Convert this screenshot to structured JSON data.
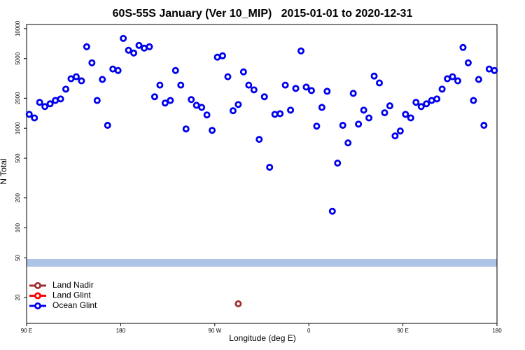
{
  "chart_data": {
    "type": "scatter",
    "title": "60S-55S January (Ver 10_MIP)   2015-01-01 to 2020-12-31",
    "x_label": "Longitude (deg E)",
    "y_label": "N Total",
    "log_y": true,
    "xlim": [
      90,
      540
    ],
    "ylim": [
      11,
      11000
    ],
    "xticks": [
      {
        "value": 90,
        "label": "90 E"
      },
      180,
      {
        "value": 270,
        "label": "90 W"
      },
      {
        "value": 360,
        "label": "0"
      },
      {
        "value": 450,
        "label": "90 E"
      },
      {
        "value": 540,
        "label": "180"
      }
    ],
    "yticks": [
      20,
      50,
      100,
      200,
      500,
      1000,
      2000,
      5000,
      10000
    ],
    "legend": "bottom-left",
    "series": [
      {
        "name": "Land Nadir",
        "color": "#a03030",
        "x": [
          292.5
        ],
        "values": [
          17.3
        ]
      },
      {
        "name": "Land Glint",
        "color": "#ff0000",
        "x": [],
        "values": []
      },
      {
        "name": "Ocean Glint",
        "color": "#0000ee",
        "x": [
          92.5,
          97.5,
          102.5,
          107.5,
          112.5,
          117.5,
          122.5,
          127.5,
          132.5,
          137.5,
          142.5,
          147.5,
          152.5,
          157.5,
          162.5,
          167.5,
          172.5,
          177.5,
          182.5,
          187.5,
          192.5,
          197.5,
          202.5,
          207.5,
          212.5,
          217.5,
          222.5,
          227.5,
          232.5,
          237.5,
          242.5,
          247.5,
          252.5,
          257.5,
          262.5,
          267.5,
          272.5,
          277.5,
          282.5,
          287.5,
          292.5,
          297.5,
          302.5,
          307.5,
          312.5,
          317.5,
          322.5,
          327.5,
          332.5,
          337.5,
          342.5,
          347.5,
          352.5,
          357.5,
          362.5,
          367.5,
          372.5,
          377.5,
          382.5,
          387.5,
          392.5,
          397.5,
          402.5,
          407.5,
          412.5,
          417.5,
          422.5,
          427.5,
          432.5,
          437.5,
          442.5,
          447.5,
          452.5,
          457.5,
          462.5,
          467.5,
          472.5,
          477.5,
          482.5,
          487.5,
          492.5,
          497.5,
          502.5,
          507.5,
          512.5,
          517.5,
          522.5,
          527.5,
          532.5,
          537.5
        ],
        "values": [
          1380,
          1270,
          1820,
          1650,
          1760,
          1900,
          1970,
          2470,
          3140,
          3290,
          2990,
          6580,
          4540,
          1900,
          3090,
          1070,
          3930,
          3800,
          7980,
          6070,
          5690,
          6790,
          6370,
          6580,
          2070,
          2710,
          1790,
          1900,
          3800,
          2710,
          984,
          1940,
          1700,
          1620,
          1360,
          953,
          5170,
          5340,
          3290,
          1500,
          1730,
          3680,
          2710,
          2430,
          773,
          2070,
          406,
          1380,
          1400,
          2710,
          1520,
          2510,
          5970,
          2590,
          2390,
          1050,
          1620,
          2350,
          147,
          447,
          1070,
          713,
          2240,
          1100,
          1520,
          1270,
          3340,
          2850,
          1430,
          1680,
          838,
          938,
          1380,
          1270,
          1820,
          1650,
          1760,
          1900,
          1970,
          2470,
          3140,
          3290,
          2990,
          6470,
          4540,
          1900,
          3090,
          1070,
          3930,
          3800
        ]
      }
    ]
  }
}
